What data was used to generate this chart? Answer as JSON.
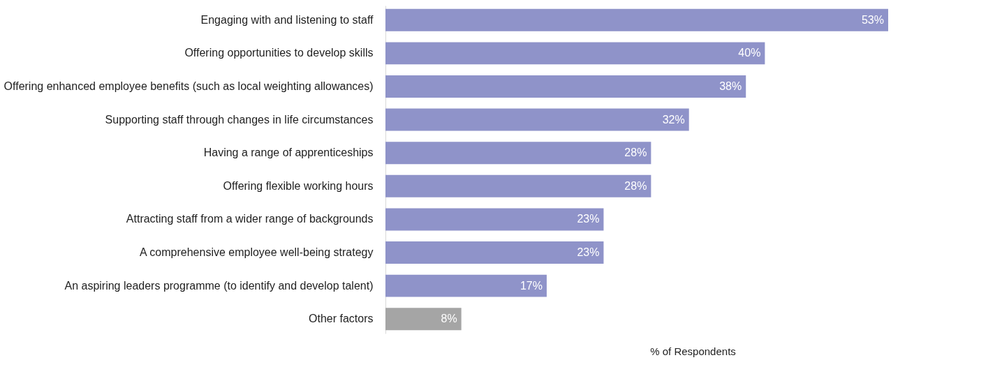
{
  "chart_data": {
    "type": "bar",
    "orientation": "horizontal",
    "xlabel": "% of Respondents",
    "categories": [
      "Engaging with and listening to staff",
      "Offering opportunities to develop skills",
      "Offering enhanced employee benefits (such as local weighting allowances)",
      "Supporting staff through changes in life circumstances",
      "Having a range of apprenticeships",
      "Offering flexible working hours",
      "Attracting staff from a wider range of backgrounds",
      "A comprehensive employee well-being strategy",
      "An aspiring leaders programme (to identify and develop talent)",
      "Other factors"
    ],
    "values": [
      53,
      40,
      38,
      32,
      28,
      28,
      23,
      23,
      17,
      8
    ],
    "colors": [
      "#8f93c9",
      "#8f93c9",
      "#8f93c9",
      "#8f93c9",
      "#8f93c9",
      "#8f93c9",
      "#8f93c9",
      "#8f93c9",
      "#8f93c9",
      "#a5a5a5"
    ],
    "value_labels": [
      "53%",
      "40%",
      "38%",
      "32%",
      "28%",
      "28%",
      "23%",
      "23%",
      "17%",
      "8%"
    ],
    "xlim": [
      0,
      53
    ],
    "grid": false
  }
}
